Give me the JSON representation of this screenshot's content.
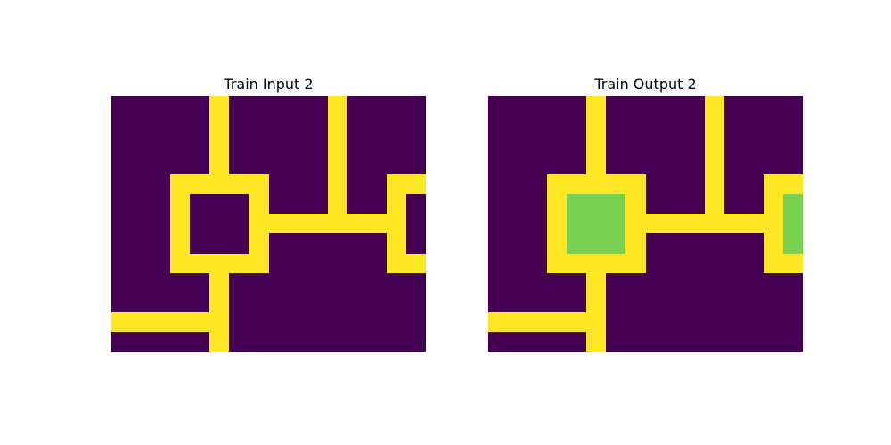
{
  "palette": {
    "0": "#440154",
    "4": "#fde725",
    "3": "#7ad151"
  },
  "panels": [
    {
      "title": "Train Input 2",
      "grid": [
        [
          0,
          0,
          0,
          0,
          0,
          4,
          0,
          0,
          0,
          0,
          0,
          4,
          0,
          0,
          0,
          0
        ],
        [
          0,
          0,
          0,
          0,
          0,
          4,
          0,
          0,
          0,
          0,
          0,
          4,
          0,
          0,
          0,
          0
        ],
        [
          0,
          0,
          0,
          0,
          0,
          4,
          0,
          0,
          0,
          0,
          0,
          4,
          0,
          0,
          0,
          0
        ],
        [
          0,
          0,
          0,
          0,
          0,
          4,
          0,
          0,
          0,
          0,
          0,
          4,
          0,
          0,
          0,
          0
        ],
        [
          0,
          0,
          0,
          4,
          4,
          4,
          4,
          4,
          0,
          0,
          0,
          4,
          0,
          0,
          4,
          4
        ],
        [
          0,
          0,
          0,
          4,
          0,
          0,
          0,
          4,
          0,
          0,
          0,
          4,
          0,
          0,
          4,
          0
        ],
        [
          0,
          0,
          0,
          4,
          0,
          0,
          0,
          4,
          4,
          4,
          4,
          4,
          4,
          4,
          4,
          0
        ],
        [
          0,
          0,
          0,
          4,
          0,
          0,
          0,
          4,
          0,
          0,
          0,
          0,
          0,
          0,
          4,
          0
        ],
        [
          0,
          0,
          0,
          4,
          4,
          4,
          4,
          4,
          0,
          0,
          0,
          0,
          0,
          0,
          4,
          4
        ],
        [
          0,
          0,
          0,
          0,
          0,
          4,
          0,
          0,
          0,
          0,
          0,
          0,
          0,
          0,
          0,
          0
        ],
        [
          0,
          0,
          0,
          0,
          0,
          4,
          0,
          0,
          0,
          0,
          0,
          0,
          0,
          0,
          0,
          0
        ],
        [
          4,
          4,
          4,
          4,
          4,
          4,
          0,
          0,
          0,
          0,
          0,
          0,
          0,
          0,
          0,
          0
        ],
        [
          0,
          0,
          0,
          0,
          0,
          4,
          0,
          0,
          0,
          0,
          0,
          0,
          0,
          0,
          0,
          0
        ]
      ]
    },
    {
      "title": "Train Output 2",
      "grid": [
        [
          0,
          0,
          0,
          0,
          0,
          4,
          0,
          0,
          0,
          0,
          0,
          4,
          0,
          0,
          0,
          0
        ],
        [
          0,
          0,
          0,
          0,
          0,
          4,
          0,
          0,
          0,
          0,
          0,
          4,
          0,
          0,
          0,
          0
        ],
        [
          0,
          0,
          0,
          0,
          0,
          4,
          0,
          0,
          0,
          0,
          0,
          4,
          0,
          0,
          0,
          0
        ],
        [
          0,
          0,
          0,
          0,
          0,
          4,
          0,
          0,
          0,
          0,
          0,
          4,
          0,
          0,
          0,
          0
        ],
        [
          0,
          0,
          0,
          4,
          4,
          4,
          4,
          4,
          0,
          0,
          0,
          4,
          0,
          0,
          4,
          4
        ],
        [
          0,
          0,
          0,
          4,
          3,
          3,
          3,
          4,
          0,
          0,
          0,
          4,
          0,
          0,
          4,
          3
        ],
        [
          0,
          0,
          0,
          4,
          3,
          3,
          3,
          4,
          4,
          4,
          4,
          4,
          4,
          4,
          4,
          3
        ],
        [
          0,
          0,
          0,
          4,
          3,
          3,
          3,
          4,
          0,
          0,
          0,
          0,
          0,
          0,
          4,
          3
        ],
        [
          0,
          0,
          0,
          4,
          4,
          4,
          4,
          4,
          0,
          0,
          0,
          0,
          0,
          0,
          4,
          4
        ],
        [
          0,
          0,
          0,
          0,
          0,
          4,
          0,
          0,
          0,
          0,
          0,
          0,
          0,
          0,
          0,
          0
        ],
        [
          0,
          0,
          0,
          0,
          0,
          4,
          0,
          0,
          0,
          0,
          0,
          0,
          0,
          0,
          0,
          0
        ],
        [
          4,
          4,
          4,
          4,
          4,
          4,
          0,
          0,
          0,
          0,
          0,
          0,
          0,
          0,
          0,
          0
        ],
        [
          0,
          0,
          0,
          0,
          0,
          4,
          0,
          0,
          0,
          0,
          0,
          0,
          0,
          0,
          0,
          0
        ]
      ]
    }
  ]
}
